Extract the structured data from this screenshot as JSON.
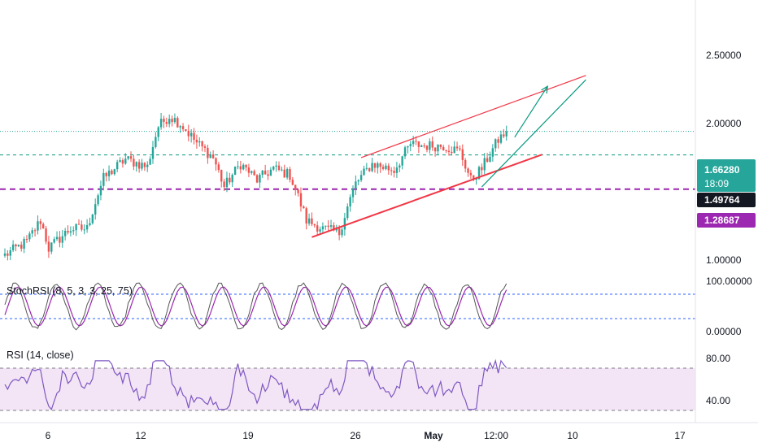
{
  "colors": {
    "up": "#26a69a",
    "down": "#ef5350",
    "stoch_k": "#2962ff",
    "stoch_d": "#9c27b0",
    "rsi_line": "#7e57c2",
    "rsi_band": "#f3e5f5",
    "support_purple": "#9c27b0",
    "trend_red": "#f23645",
    "arrow_teal": "#089981",
    "dotted_blue": "#2962ff"
  },
  "chart_data": [
    {
      "type": "candlestick",
      "title": "",
      "x_ticks": [
        "6",
        "12",
        "19",
        "26",
        "May",
        "12:00",
        "10",
        "17"
      ],
      "price_axis": [
        "2.50000",
        "2.00000",
        "1.00000"
      ],
      "ylim": [
        0.9,
        2.85
      ],
      "y_scale": "log",
      "last_price": "1.66280",
      "countdown": "18:09",
      "levels": [
        {
          "value": "1.49764",
          "label": "1.49764",
          "color": "#131722"
        },
        {
          "value": "1.28687",
          "label": "1.28687",
          "color": "#9c27b0"
        }
      ],
      "anchors": [
        {
          "bar": 0,
          "price": 0.96
        },
        {
          "bar": 8,
          "price": 1.02
        },
        {
          "bar": 13,
          "price": 1.12
        },
        {
          "bar": 16,
          "price": 0.99
        },
        {
          "bar": 24,
          "price": 1.08
        },
        {
          "bar": 30,
          "price": 1.08
        },
        {
          "bar": 36,
          "price": 1.35
        },
        {
          "bar": 44,
          "price": 1.47
        },
        {
          "bar": 52,
          "price": 1.42
        },
        {
          "bar": 56,
          "price": 1.7
        },
        {
          "bar": 60,
          "price": 1.78
        },
        {
          "bar": 64,
          "price": 1.72
        },
        {
          "bar": 70,
          "price": 1.58
        },
        {
          "bar": 76,
          "price": 1.48
        },
        {
          "bar": 80,
          "price": 1.3
        },
        {
          "bar": 86,
          "price": 1.44
        },
        {
          "bar": 92,
          "price": 1.34
        },
        {
          "bar": 98,
          "price": 1.41
        },
        {
          "bar": 104,
          "price": 1.37
        },
        {
          "bar": 110,
          "price": 1.12
        },
        {
          "bar": 116,
          "price": 1.08
        },
        {
          "bar": 122,
          "price": 1.06
        },
        {
          "bar": 128,
          "price": 1.32
        },
        {
          "bar": 134,
          "price": 1.44
        },
        {
          "bar": 142,
          "price": 1.4
        },
        {
          "bar": 148,
          "price": 1.57
        },
        {
          "bar": 154,
          "price": 1.56
        },
        {
          "bar": 160,
          "price": 1.56
        },
        {
          "bar": 166,
          "price": 1.52
        },
        {
          "bar": 170,
          "price": 1.34
        },
        {
          "bar": 174,
          "price": 1.41
        },
        {
          "bar": 180,
          "price": 1.6
        },
        {
          "bar": 183,
          "price": 1.663
        }
      ],
      "trendlines": [
        {
          "name": "upper-channel",
          "from": {
            "bar": 130,
            "price": 1.48
          },
          "to": {
            "bar": 212,
            "price": 2.13
          }
        },
        {
          "name": "lower-channel",
          "from": {
            "bar": 112,
            "price": 1.04
          },
          "to": {
            "bar": 196,
            "price": 1.5
          }
        },
        {
          "name": "arrow-long",
          "from": {
            "bar": 174,
            "price": 1.3
          },
          "to": {
            "bar": 212,
            "price": 2.09
          }
        },
        {
          "name": "arrow-short",
          "from": {
            "bar": 186,
            "price": 1.62
          },
          "to": {
            "bar": 198,
            "price": 2.03
          }
        }
      ]
    },
    {
      "type": "line",
      "title": "StochRSI (8, 5, 3, 3, 25, 75)",
      "ylim": [
        0,
        100
      ],
      "axis_labels": [
        "100.00000",
        "0.00000"
      ],
      "bands": [
        25,
        75
      ]
    },
    {
      "type": "line",
      "title": "RSI (14, close)",
      "ylim": [
        28,
        86
      ],
      "axis_labels": [
        "80.00",
        "40.00"
      ],
      "bands": [
        30,
        70
      ]
    }
  ]
}
